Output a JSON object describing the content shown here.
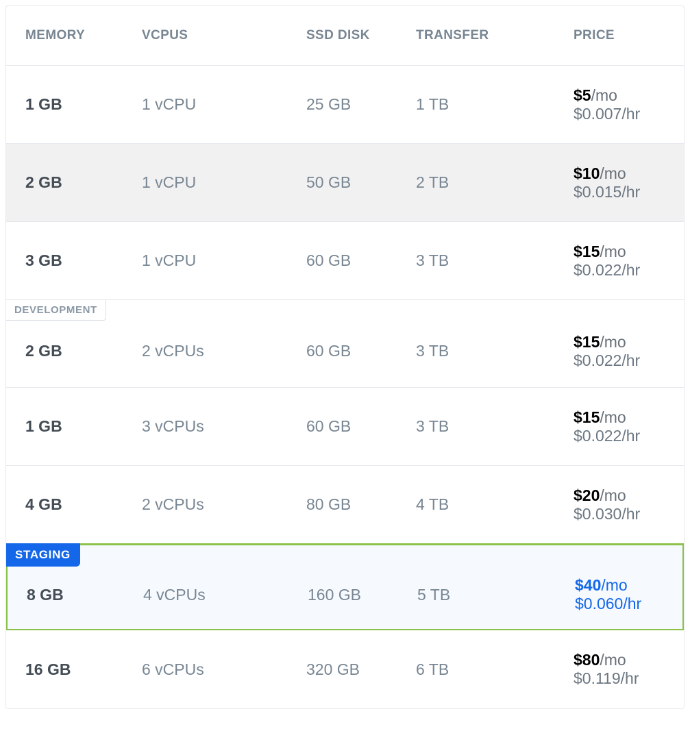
{
  "table": {
    "columns": {
      "memory": "MEMORY",
      "vcpus": "vCPUs",
      "disk": "SSD DISK",
      "transfer": "TRANSFER",
      "price": "PRICE"
    },
    "rows": [
      {
        "memory": "1 GB",
        "vcpus": "1 vCPU",
        "disk": "25 GB",
        "transfer": "1 TB",
        "price_mo": "$5",
        "price_hr": "$0.007/hr",
        "tag": null,
        "selected": false,
        "alt": false
      },
      {
        "memory": "2 GB",
        "vcpus": "1 vCPU",
        "disk": "50 GB",
        "transfer": "2 TB",
        "price_mo": "$10",
        "price_hr": "$0.015/hr",
        "tag": null,
        "selected": false,
        "alt": true
      },
      {
        "memory": "3 GB",
        "vcpus": "1 vCPU",
        "disk": "60 GB",
        "transfer": "3 TB",
        "price_mo": "$15",
        "price_hr": "$0.022/hr",
        "tag": null,
        "selected": false,
        "alt": false
      },
      {
        "memory": "2 GB",
        "vcpus": "2 vCPUs",
        "disk": "60 GB",
        "transfer": "3 TB",
        "price_mo": "$15",
        "price_hr": "$0.022/hr",
        "tag": "DEVELOPMENT",
        "selected": false,
        "alt": false
      },
      {
        "memory": "1 GB",
        "vcpus": "3 vCPUs",
        "disk": "60 GB",
        "transfer": "3 TB",
        "price_mo": "$15",
        "price_hr": "$0.022/hr",
        "tag": null,
        "selected": false,
        "alt": false
      },
      {
        "memory": "4 GB",
        "vcpus": "2 vCPUs",
        "disk": "80 GB",
        "transfer": "4 TB",
        "price_mo": "$20",
        "price_hr": "$0.030/hr",
        "tag": null,
        "selected": false,
        "alt": false
      },
      {
        "memory": "8 GB",
        "vcpus": "4 vCPUs",
        "disk": "160 GB",
        "transfer": "5 TB",
        "price_mo": "$40",
        "price_hr": "$0.060/hr",
        "tag": "STAGING",
        "selected": true,
        "alt": false
      },
      {
        "memory": "16 GB",
        "vcpus": "6 vCPUs",
        "disk": "320 GB",
        "transfer": "6 TB",
        "price_mo": "$80",
        "price_hr": "$0.119/hr",
        "tag": null,
        "selected": false,
        "alt": false
      }
    ],
    "price_suffix": "/mo",
    "colors": {
      "border": "#e5e8ec",
      "header_text": "#788693",
      "cell_muted": "#788693",
      "cell_strong": "#444d56",
      "row_alt_bg": "#f1f1f1",
      "selected_bg": "#f6faff",
      "selected_border": "#8cc24a",
      "accent": "#1467e8"
    }
  }
}
